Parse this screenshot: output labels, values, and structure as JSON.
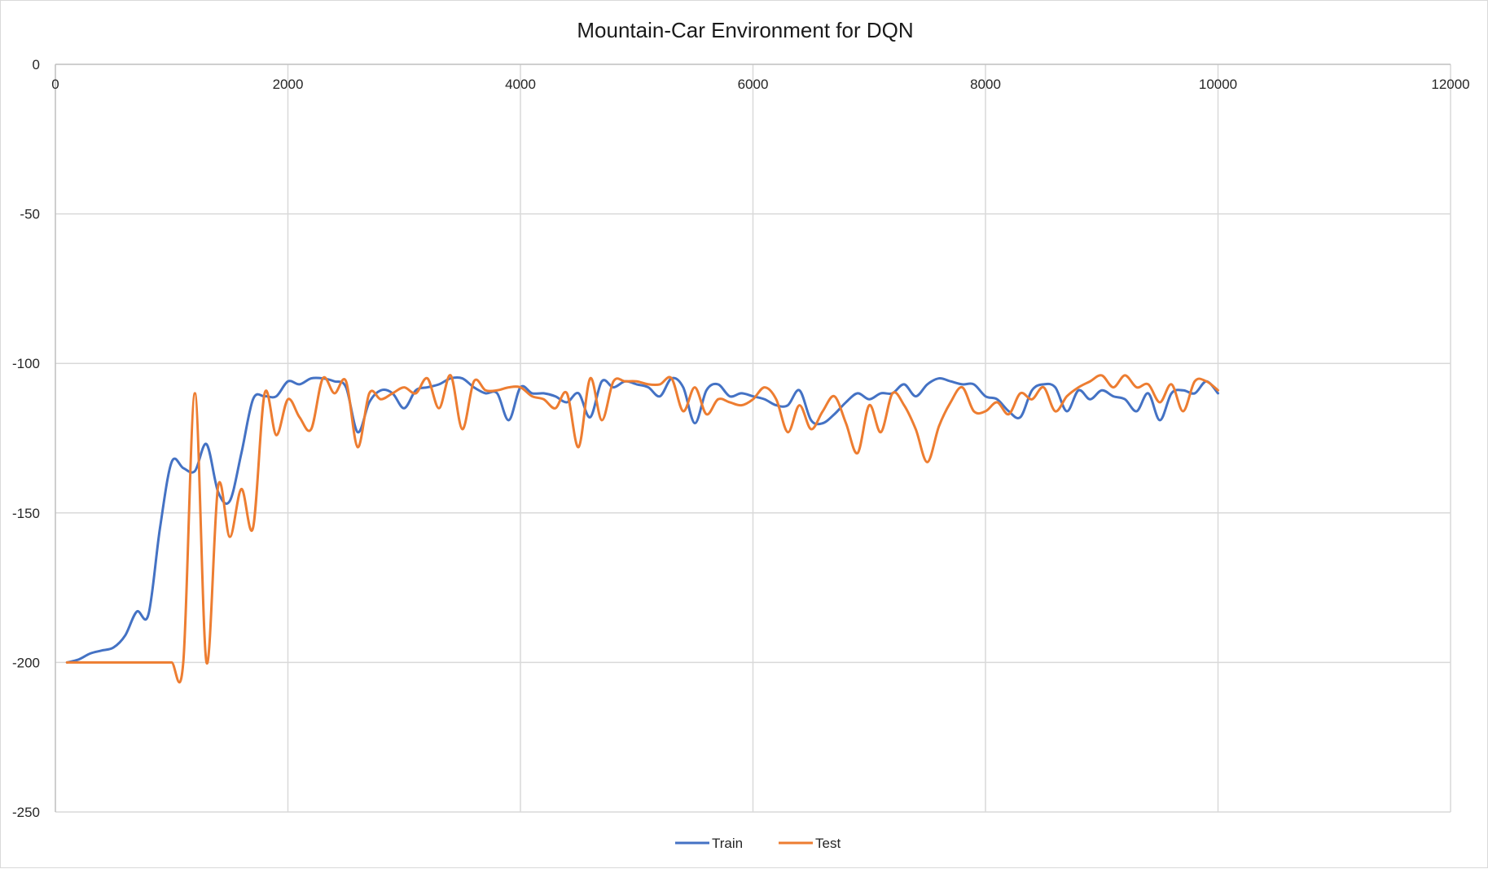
{
  "chart_data": {
    "type": "line",
    "title": "Mountain-Car Environment for DQN",
    "xlabel": "",
    "ylabel": "",
    "xlim": [
      0,
      12000
    ],
    "ylim": [
      -250,
      0
    ],
    "x_ticks": [
      0,
      2000,
      4000,
      6000,
      8000,
      10000,
      12000
    ],
    "y_ticks": [
      0,
      -50,
      -100,
      -150,
      -200,
      -250
    ],
    "x_tick_labels": [
      "0",
      "2000",
      "4000",
      "6000",
      "8000",
      "10000",
      "12000"
    ],
    "y_tick_labels": [
      "0",
      "-50",
      "-100",
      "-150",
      "-200",
      "-250"
    ],
    "grid": true,
    "legend_position": "bottom",
    "series": [
      {
        "name": "Train",
        "color": "#4472c4",
        "x": [
          100,
          200,
          300,
          400,
          500,
          600,
          700,
          800,
          900,
          1000,
          1100,
          1200,
          1300,
          1400,
          1500,
          1600,
          1700,
          1800,
          1900,
          2000,
          2100,
          2200,
          2300,
          2400,
          2500,
          2600,
          2700,
          2800,
          2900,
          3000,
          3100,
          3200,
          3300,
          3400,
          3500,
          3600,
          3700,
          3800,
          3900,
          4000,
          4100,
          4200,
          4300,
          4400,
          4500,
          4600,
          4700,
          4800,
          4900,
          5000,
          5100,
          5200,
          5300,
          5400,
          5500,
          5600,
          5700,
          5800,
          5900,
          6000,
          6100,
          6200,
          6300,
          6400,
          6500,
          6600,
          6700,
          6800,
          6900,
          7000,
          7100,
          7200,
          7300,
          7400,
          7500,
          7600,
          7700,
          7800,
          7900,
          8000,
          8100,
          8200,
          8300,
          8400,
          8500,
          8600,
          8700,
          8800,
          8900,
          9000,
          9100,
          9200,
          9300,
          9400,
          9500,
          9600,
          9700,
          9800,
          9900,
          10000
        ],
        "values": [
          -200,
          -199,
          -197,
          -196,
          -195,
          -191,
          -183,
          -184,
          -155,
          -133,
          -135,
          -136,
          -127,
          -143,
          -146,
          -130,
          -112,
          -111,
          -111,
          -106,
          -107,
          -105,
          -105,
          -106,
          -108,
          -123,
          -113,
          -109,
          -110,
          -115,
          -109,
          -108,
          -107,
          -105,
          -105,
          -108,
          -110,
          -110,
          -119,
          -108,
          -110,
          -110,
          -111,
          -113,
          -110,
          -118,
          -106,
          -108,
          -106,
          -107,
          -108,
          -111,
          -105,
          -108,
          -120,
          -109,
          -107,
          -111,
          -110,
          -111,
          -112,
          -114,
          -114,
          -109,
          -119,
          -120,
          -117,
          -113,
          -110,
          -112,
          -110,
          -110,
          -107,
          -111,
          -107,
          -105,
          -106,
          -107,
          -107,
          -111,
          -112,
          -116,
          -118,
          -109,
          -107,
          -108,
          -116,
          -109,
          -112,
          -109,
          -111,
          -112,
          -116,
          -110,
          -119,
          -110,
          -109,
          -110,
          -106,
          -110
        ]
      },
      {
        "name": "Test",
        "color": "#ed7d31",
        "x": [
          100,
          200,
          300,
          400,
          500,
          600,
          700,
          800,
          900,
          1000,
          1100,
          1200,
          1300,
          1400,
          1500,
          1600,
          1700,
          1800,
          1900,
          2000,
          2100,
          2200,
          2300,
          2400,
          2500,
          2600,
          2700,
          2800,
          2900,
          3000,
          3100,
          3200,
          3300,
          3400,
          3500,
          3600,
          3700,
          3800,
          3900,
          4000,
          4100,
          4200,
          4300,
          4400,
          4500,
          4600,
          4700,
          4800,
          4900,
          5000,
          5100,
          5200,
          5300,
          5400,
          5500,
          5600,
          5700,
          5800,
          5900,
          6000,
          6100,
          6200,
          6300,
          6400,
          6500,
          6600,
          6700,
          6800,
          6900,
          7000,
          7100,
          7200,
          7300,
          7400,
          7500,
          7600,
          7700,
          7800,
          7900,
          8000,
          8100,
          8200,
          8300,
          8400,
          8500,
          8600,
          8700,
          8800,
          8900,
          9000,
          9100,
          9200,
          9300,
          9400,
          9500,
          9600,
          9700,
          9800,
          9900,
          10000
        ],
        "values": [
          -200,
          -200,
          -200,
          -200,
          -200,
          -200,
          -200,
          -200,
          -200,
          -200,
          -200,
          -110,
          -200,
          -141,
          -158,
          -142,
          -155,
          -110,
          -124,
          -112,
          -118,
          -122,
          -105,
          -110,
          -106,
          -128,
          -110,
          -112,
          -110,
          -108,
          -110,
          -105,
          -115,
          -104,
          -122,
          -106,
          -109,
          -109,
          -108,
          -108,
          -111,
          -112,
          -115,
          -110,
          -128,
          -105,
          -119,
          -106,
          -106,
          -106,
          -107,
          -107,
          -105,
          -116,
          -108,
          -117,
          -112,
          -113,
          -114,
          -112,
          -108,
          -112,
          -123,
          -114,
          -122,
          -116,
          -111,
          -120,
          -130,
          -114,
          -123,
          -110,
          -114,
          -122,
          -133,
          -121,
          -113,
          -108,
          -116,
          -116,
          -113,
          -117,
          -110,
          -112,
          -108,
          -116,
          -111,
          -108,
          -106,
          -104,
          -108,
          -104,
          -108,
          -107,
          -113,
          -107,
          -116,
          -106,
          -106,
          -109
        ]
      }
    ]
  }
}
